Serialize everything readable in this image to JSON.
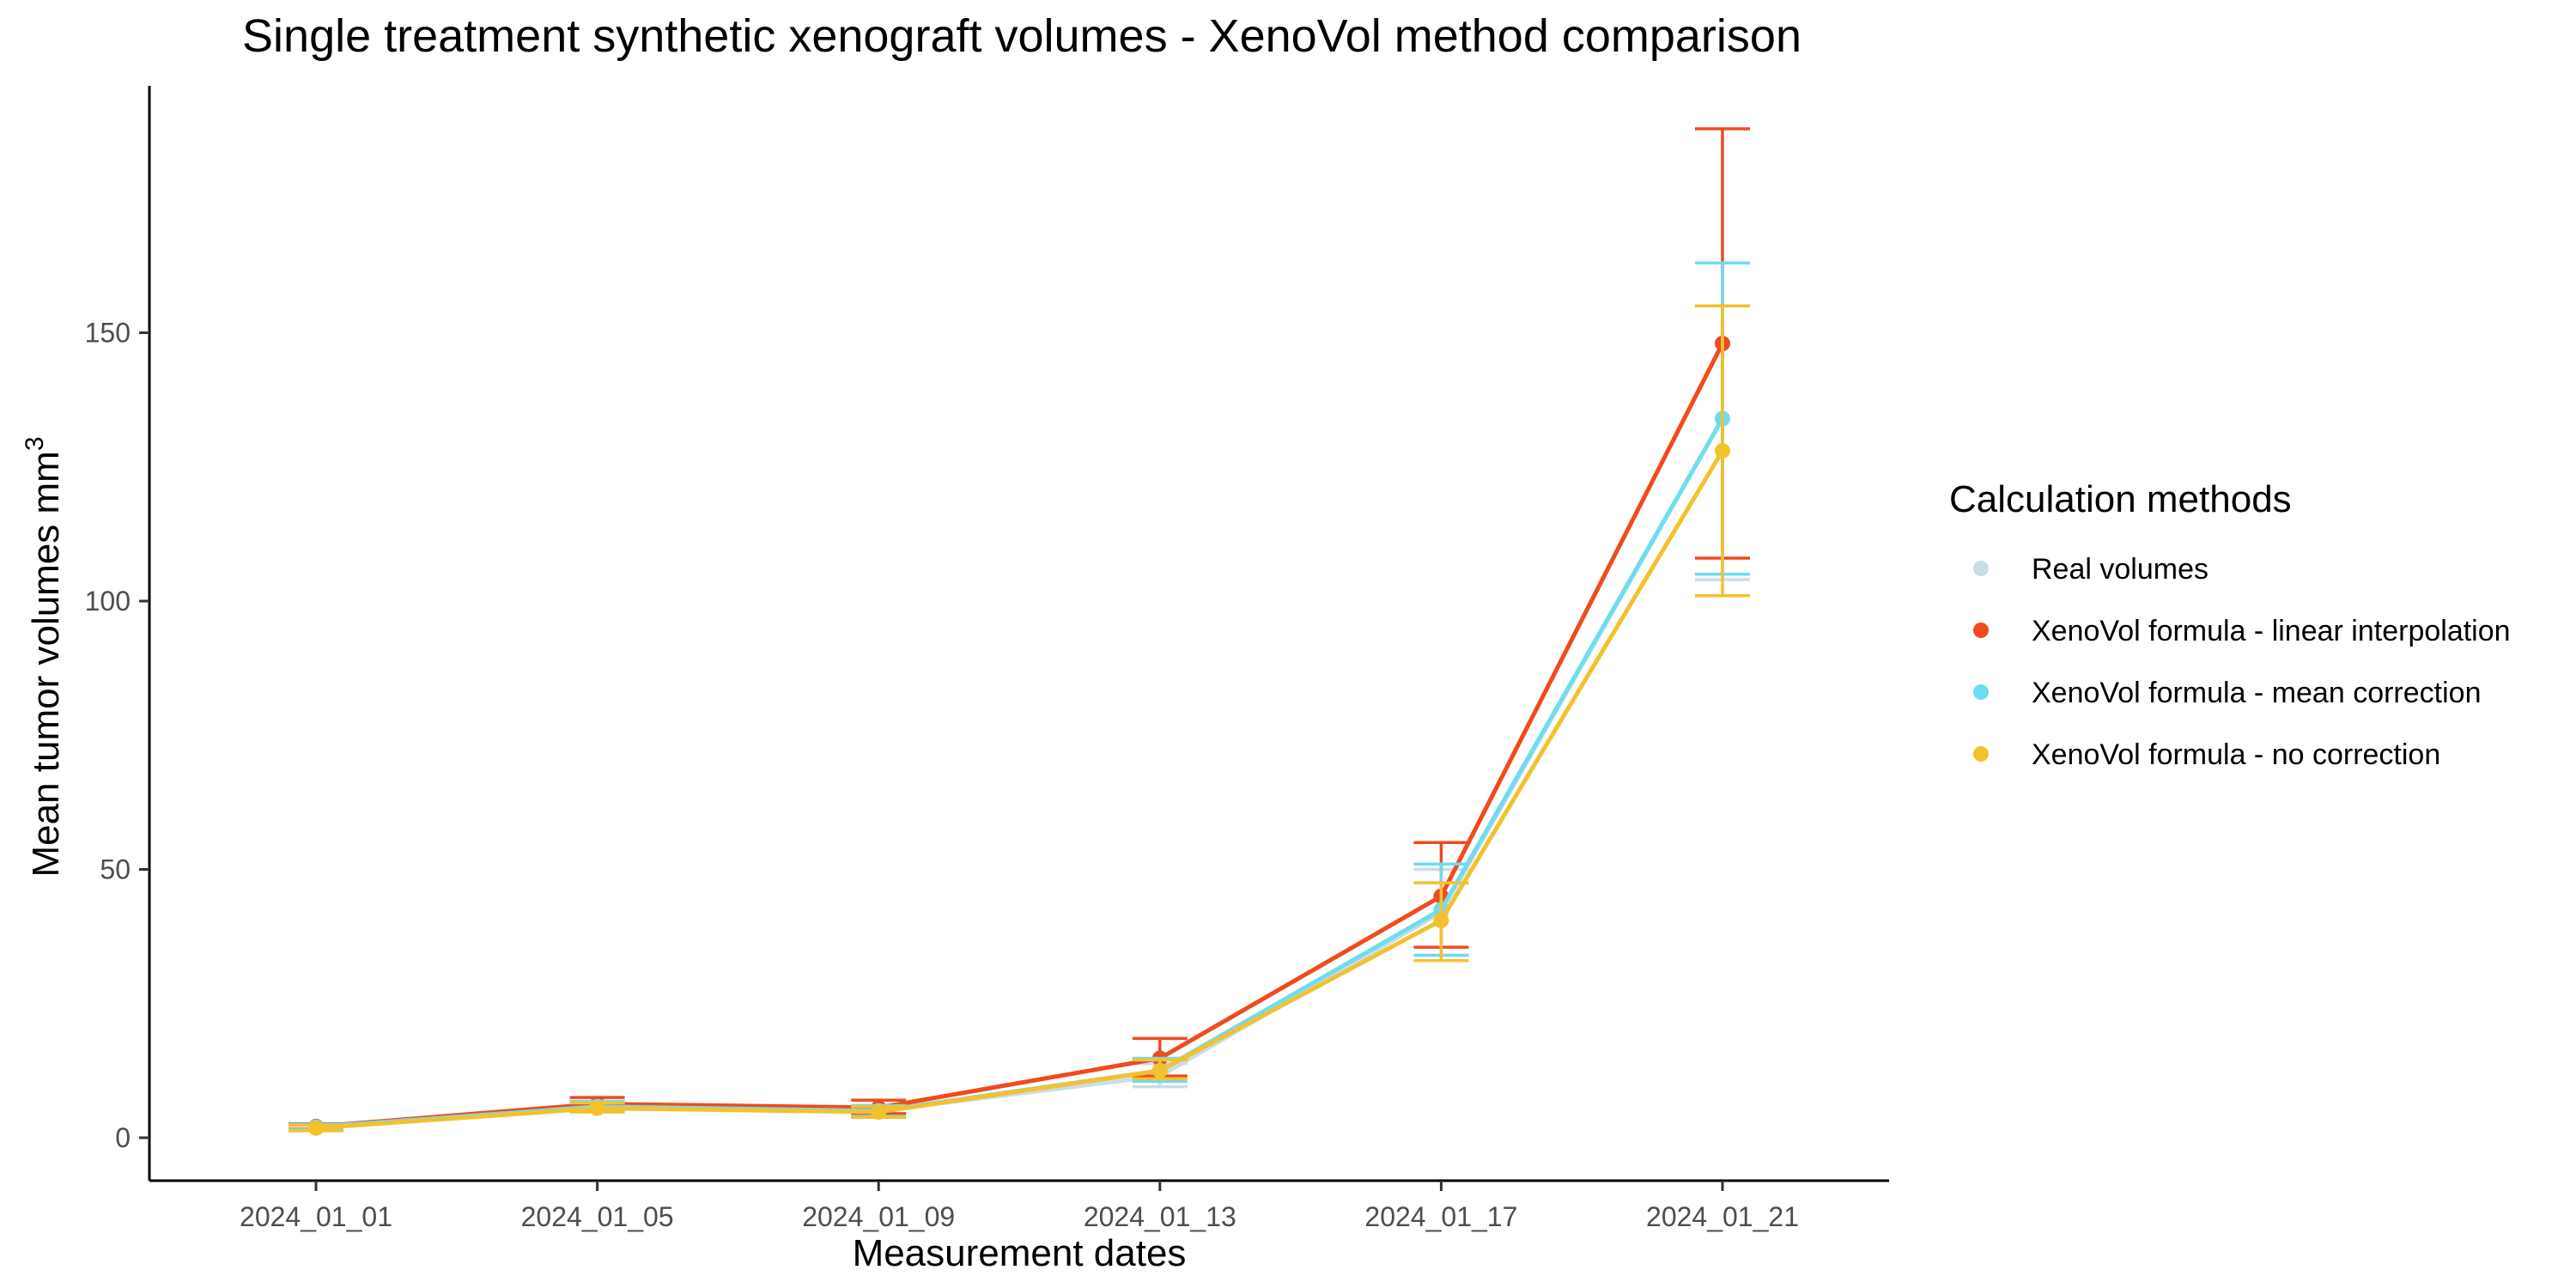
{
  "chart_data": {
    "type": "line",
    "title": "Single treatment synthetic xenograft volumes - XenoVol method comparison",
    "xlabel": "Measurement dates",
    "ylabel": "Mean tumor volumes mm",
    "ylabel_superscript": "3",
    "categories": [
      "2024_01_01",
      "2024_01_05",
      "2024_01_09",
      "2024_01_13",
      "2024_01_17",
      "2024_01_21"
    ],
    "ylim": [
      -8,
      196
    ],
    "yticks": [
      0,
      50,
      100,
      150
    ],
    "grid": false,
    "legend": {
      "title": "Calculation methods",
      "position": "right"
    },
    "series": [
      {
        "name": "Real volumes",
        "color": "#c9dde6",
        "values": [
          2,
          5.8,
          5.0,
          11.5,
          42,
          134
        ],
        "err_low": [
          1.5,
          5.0,
          4.0,
          9.5,
          34,
          104
        ],
        "err_high": [
          2.5,
          6.8,
          6.0,
          13.8,
          50,
          163
        ]
      },
      {
        "name": "XenoVol formula - linear interpolation",
        "color": "#f04a1e",
        "values": [
          2.1,
          6.3,
          5.6,
          14.8,
          45,
          148
        ],
        "err_low": [
          1.6,
          5.3,
          4.5,
          11.5,
          35.5,
          108
        ],
        "err_high": [
          2.6,
          7.5,
          7.0,
          18.5,
          55,
          188
        ]
      },
      {
        "name": "XenoVol formula - mean correction",
        "color": "#6fdcf0",
        "values": [
          2,
          5.8,
          5.0,
          12.5,
          42.5,
          134
        ],
        "err_low": [
          1.5,
          5.0,
          4.0,
          10.5,
          34,
          105
        ],
        "err_high": [
          2.5,
          6.8,
          6.0,
          14.8,
          51,
          163
        ]
      },
      {
        "name": "XenoVol formula - no correction",
        "color": "#f2c12e",
        "values": [
          1.8,
          5.5,
          4.8,
          12.5,
          40.5,
          128
        ],
        "err_low": [
          1.3,
          4.8,
          3.8,
          11.0,
          33,
          101
        ],
        "err_high": [
          2.3,
          6.5,
          5.8,
          14.5,
          47.5,
          155
        ]
      }
    ]
  }
}
